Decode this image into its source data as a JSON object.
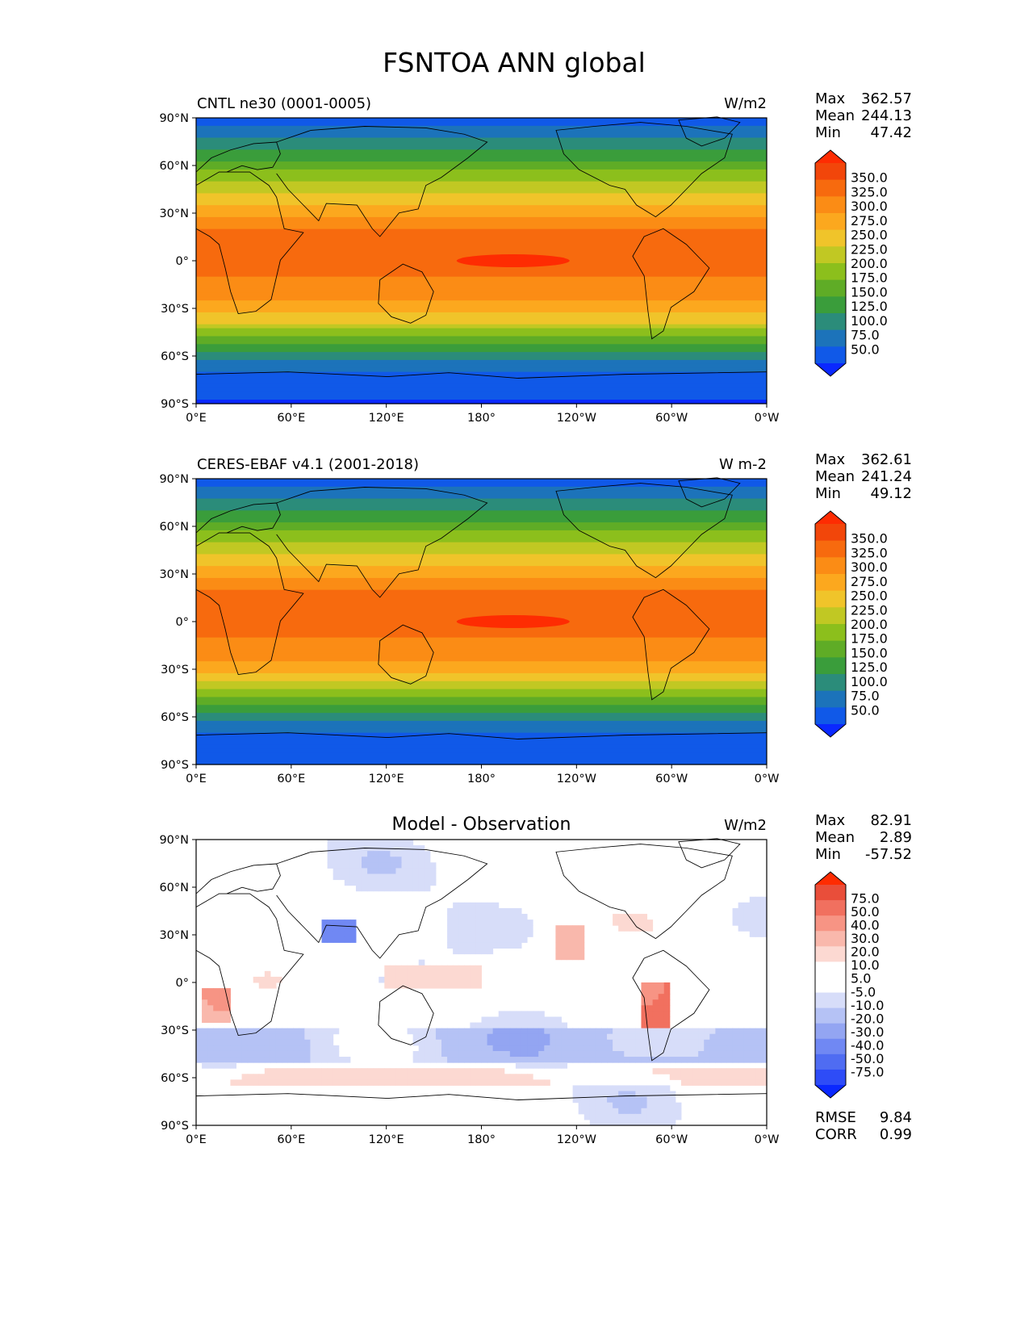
{
  "figure": {
    "title": "FSNTOA ANN global"
  },
  "colors": {
    "levels_abs": [
      "#0a28ff",
      "#1059e8",
      "#1c73ba",
      "#2b8c7a",
      "#3a9d3b",
      "#5fac26",
      "#8cbf1c",
      "#c1c823",
      "#f0c42a",
      "#fca81e",
      "#fb8c15",
      "#f76a0e",
      "#f2460a",
      "#fe2c02"
    ],
    "levels_diff": [
      "#0a28ff",
      "#2e4cf7",
      "#4f6cf2",
      "#7088f3",
      "#93a5f2",
      "#b5c2f5",
      "#d7ddf9",
      "#ffffff",
      "#ffffff",
      "#fcd9d2",
      "#f9b8ac",
      "#f79484",
      "#f1705f",
      "#e94e3a",
      "#fe2c02"
    ],
    "land": "#000000"
  },
  "chart_data": [
    {
      "type": "heatmap",
      "name": "model",
      "title": "CNTL ne30 (0001-0005)",
      "units": "W/m2",
      "stats": {
        "labels": [
          "Max",
          "Mean",
          "Min"
        ],
        "values": [
          "362.57",
          "244.13",
          "47.42"
        ]
      },
      "colorbar_ticks": [
        "350.0",
        "325.0",
        "300.0",
        "275.0",
        "250.0",
        "225.0",
        "200.0",
        "175.0",
        "150.0",
        "125.0",
        "100.0",
        "75.0",
        "50.0"
      ],
      "xticks": [
        "0°E",
        "60°E",
        "120°E",
        "180°",
        "120°W",
        "60°W",
        "0°W"
      ],
      "yticks": [
        "90°N",
        "60°N",
        "30°N",
        "0°",
        "30°S",
        "60°S",
        "90°S"
      ],
      "lon_range": [
        0,
        360
      ],
      "lat_range": [
        -90,
        90
      ],
      "zonal_profile": {
        "lat": [
          90,
          80,
          70,
          60,
          50,
          40,
          30,
          20,
          10,
          0,
          -10,
          -20,
          -30,
          -40,
          -50,
          -60,
          -70,
          -80,
          -90
        ],
        "value": [
          60,
          90,
          120,
          160,
          200,
          230,
          270,
          300,
          315,
          310,
          300,
          290,
          260,
          220,
          160,
          110,
          75,
          60,
          47
        ]
      }
    },
    {
      "type": "heatmap",
      "name": "observation",
      "title": "CERES-EBAF v4.1 (2001-2018)",
      "units": "W m-2",
      "stats": {
        "labels": [
          "Max",
          "Mean",
          "Min"
        ],
        "values": [
          "362.61",
          "241.24",
          "49.12"
        ]
      },
      "colorbar_ticks": [
        "350.0",
        "325.0",
        "300.0",
        "275.0",
        "250.0",
        "225.0",
        "200.0",
        "175.0",
        "150.0",
        "125.0",
        "100.0",
        "75.0",
        "50.0"
      ],
      "xticks": [
        "0°E",
        "60°E",
        "120°E",
        "180°",
        "120°W",
        "60°W",
        "0°W"
      ],
      "yticks": [
        "90°N",
        "60°N",
        "30°N",
        "0°",
        "30°S",
        "60°S",
        "90°S"
      ],
      "lon_range": [
        0,
        360
      ],
      "lat_range": [
        -90,
        90
      ],
      "zonal_profile": {
        "lat": [
          90,
          80,
          70,
          60,
          50,
          40,
          30,
          20,
          10,
          0,
          -10,
          -20,
          -30,
          -40,
          -50,
          -60,
          -70,
          -80,
          -90
        ],
        "value": [
          60,
          90,
          120,
          160,
          200,
          230,
          270,
          300,
          310,
          305,
          300,
          285,
          260,
          215,
          160,
          110,
          75,
          60,
          49
        ]
      }
    },
    {
      "type": "heatmap",
      "name": "difference",
      "title": "Model - Observation",
      "units": "W/m2",
      "stats": {
        "labels": [
          "Max",
          "Mean",
          "Min"
        ],
        "values": [
          "82.91",
          "2.89",
          "-57.52"
        ]
      },
      "colorbar_ticks": [
        "75.0",
        "50.0",
        "40.0",
        "30.0",
        "20.0",
        "10.0",
        "5.0",
        "-5.0",
        "-10.0",
        "-20.0",
        "-30.0",
        "-40.0",
        "-50.0",
        "-75.0"
      ],
      "xticks": [
        "0°E",
        "60°E",
        "120°E",
        "180°",
        "120°W",
        "60°W",
        "0°W"
      ],
      "yticks": [
        "90°N",
        "60°N",
        "30°N",
        "0°",
        "30°S",
        "60°S",
        "90°S"
      ],
      "lon_range": [
        0,
        360
      ],
      "lat_range": [
        -90,
        90
      ],
      "metrics": {
        "labels": [
          "RMSE",
          "CORR"
        ],
        "values": [
          "9.84",
          "0.99"
        ]
      }
    }
  ]
}
